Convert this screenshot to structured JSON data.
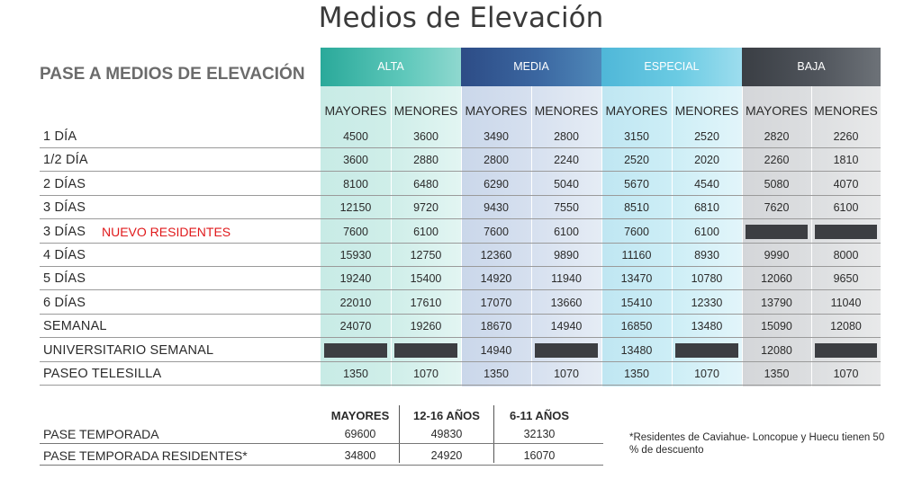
{
  "title": "Medios de Elevación",
  "section_title": "PASE A MEDIOS DE ELEVACIÓN",
  "seasons": [
    "ALTA",
    "MEDIA",
    "ESPECIAL",
    "BAJA"
  ],
  "subheaders": [
    "MAYORES",
    "MENORES",
    "MAYORES",
    "MENORES",
    "MAYORES",
    "MENORES",
    "MAYORES",
    "MENORES"
  ],
  "rows": [
    {
      "label": "1 DÍA",
      "extra": "",
      "values": [
        "4500",
        "3600",
        "3490",
        "2800",
        "3150",
        "2520",
        "2820",
        "2260"
      ]
    },
    {
      "label": "1/2 DÍA",
      "extra": "",
      "values": [
        "3600",
        "2880",
        "2800",
        "2240",
        "2520",
        "2020",
        "2260",
        "1810"
      ]
    },
    {
      "label": "2 DÍAS",
      "extra": "",
      "values": [
        "8100",
        "6480",
        "6290",
        "5040",
        "5670",
        "4540",
        "5080",
        "4070"
      ]
    },
    {
      "label": "3 DÍAS",
      "extra": "",
      "values": [
        "12150",
        "9720",
        "9430",
        "7550",
        "8510",
        "6810",
        "7620",
        "6100"
      ]
    },
    {
      "label": "3 DÍAS",
      "extra": "NUEVO RESIDENTES",
      "values": [
        "7600",
        "6100",
        "7600",
        "6100",
        "7600",
        "6100",
        "",
        ""
      ]
    },
    {
      "label": "4 DÍAS",
      "extra": "",
      "values": [
        "15930",
        "12750",
        "12360",
        "9890",
        "11160",
        "8930",
        "9990",
        "8000"
      ]
    },
    {
      "label": "5 DÍAS",
      "extra": "",
      "values": [
        "19240",
        "15400",
        "14920",
        "11940",
        "13470",
        "10780",
        "12060",
        "9650"
      ]
    },
    {
      "label": "6 DÍAS",
      "extra": "",
      "values": [
        "22010",
        "17610",
        "17070",
        "13660",
        "15410",
        "12330",
        "13790",
        "11040"
      ]
    },
    {
      "label": "SEMANAL",
      "extra": "",
      "values": [
        "24070",
        "19260",
        "18670",
        "14940",
        "16850",
        "13480",
        "15090",
        "12080"
      ]
    },
    {
      "label": "UNIVERSITARIO SEMANAL",
      "extra": "",
      "values": [
        "",
        "",
        "14940",
        "",
        "13480",
        "",
        "12080",
        ""
      ]
    },
    {
      "label": "PASEO TELESILLA",
      "extra": "",
      "values": [
        "1350",
        "1070",
        "1350",
        "1070",
        "1350",
        "1070",
        "1350",
        "1070"
      ]
    }
  ],
  "season_pass": {
    "headers": [
      "MAYORES",
      "12-16 AÑOS",
      "6-11 AÑOS"
    ],
    "rows": [
      {
        "label": "PASE TEMPORADA",
        "values": [
          "69600",
          "49830",
          "32130"
        ]
      },
      {
        "label": "PASE TEMPORADA RESIDENTES*",
        "values": [
          "34800",
          "24920",
          "16070"
        ]
      }
    ]
  },
  "note": "*Residentes de Caviahue- Loncopue y Huecu tienen 50 % de descuento"
}
